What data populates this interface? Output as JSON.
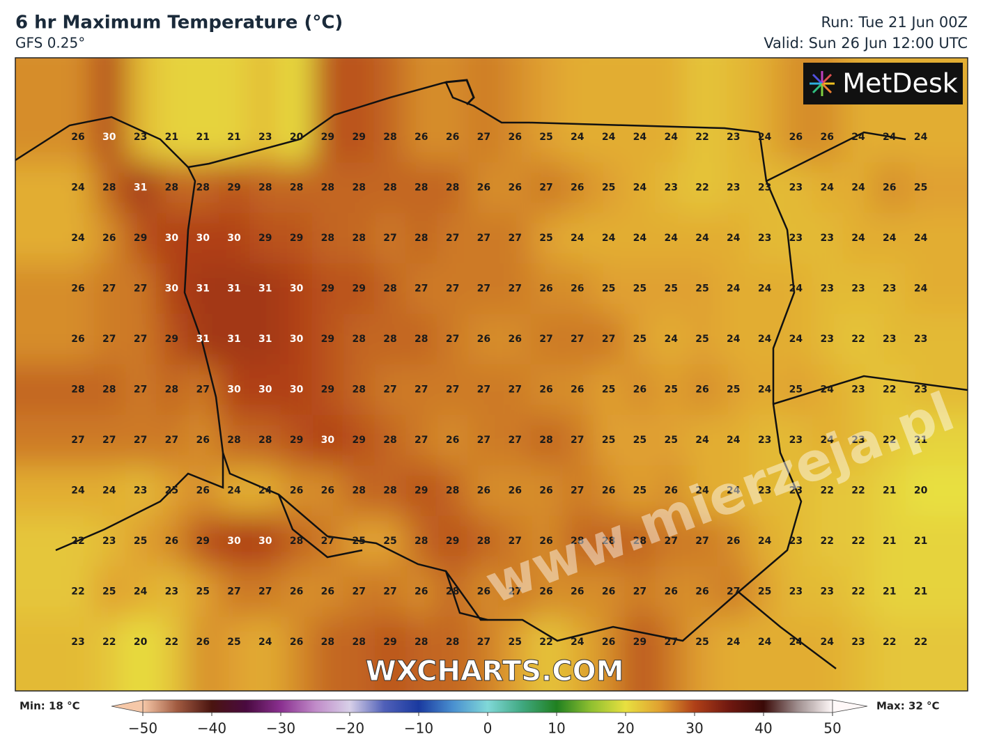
{
  "header": {
    "title": "6 hr Maximum Temperature (°C)",
    "subtitle": "GFS 0.25°",
    "run": "Run: Tue 21 Jun 00Z",
    "valid": "Valid: Sun 26 Jun 12:00 UTC"
  },
  "logo": "MetDesk",
  "watermark": "WXCHARTS.COM",
  "overlay": "www.mierzeja.pl",
  "grid": {
    "rows": [
      [
        26,
        30,
        23,
        21,
        21,
        21,
        23,
        20,
        29,
        29,
        28,
        26,
        26,
        27,
        26,
        25,
        24,
        24,
        24,
        24,
        22,
        23,
        24,
        26,
        26,
        24,
        24,
        24
      ],
      [
        24,
        28,
        31,
        28,
        28,
        29,
        28,
        28,
        28,
        28,
        28,
        28,
        28,
        26,
        26,
        27,
        26,
        25,
        24,
        23,
        22,
        23,
        23,
        23,
        24,
        24,
        26,
        25
      ],
      [
        24,
        26,
        29,
        30,
        30,
        30,
        29,
        29,
        28,
        28,
        27,
        28,
        27,
        27,
        27,
        25,
        24,
        24,
        24,
        24,
        24,
        24,
        23,
        23,
        23,
        24,
        24,
        24
      ],
      [
        26,
        27,
        27,
        30,
        31,
        31,
        31,
        30,
        29,
        29,
        28,
        27,
        27,
        27,
        27,
        26,
        26,
        25,
        25,
        25,
        25,
        24,
        24,
        24,
        23,
        23,
        23,
        24
      ],
      [
        26,
        27,
        27,
        29,
        31,
        31,
        31,
        30,
        29,
        28,
        28,
        28,
        27,
        26,
        26,
        27,
        27,
        27,
        25,
        24,
        25,
        24,
        24,
        24,
        23,
        22,
        23,
        23
      ],
      [
        28,
        28,
        27,
        28,
        27,
        30,
        30,
        30,
        29,
        28,
        27,
        27,
        27,
        27,
        27,
        26,
        26,
        25,
        26,
        25,
        26,
        25,
        24,
        25,
        24,
        23,
        22,
        23
      ],
      [
        27,
        27,
        27,
        27,
        26,
        28,
        28,
        29,
        30,
        29,
        28,
        27,
        26,
        27,
        27,
        28,
        27,
        25,
        25,
        25,
        24,
        24,
        23,
        23,
        24,
        23,
        22,
        21
      ],
      [
        24,
        24,
        23,
        25,
        26,
        24,
        24,
        26,
        26,
        28,
        28,
        29,
        28,
        26,
        26,
        26,
        27,
        26,
        25,
        26,
        24,
        24,
        23,
        23,
        22,
        22,
        21,
        20
      ],
      [
        22,
        23,
        25,
        26,
        29,
        30,
        30,
        28,
        27,
        25,
        25,
        28,
        29,
        28,
        27,
        26,
        28,
        28,
        28,
        27,
        27,
        26,
        24,
        23,
        22,
        22,
        21,
        21
      ],
      [
        22,
        25,
        24,
        23,
        25,
        27,
        27,
        26,
        26,
        27,
        27,
        26,
        28,
        26,
        27,
        26,
        26,
        26,
        27,
        26,
        26,
        27,
        25,
        23,
        23,
        22,
        21,
        21
      ],
      [
        23,
        22,
        20,
        22,
        26,
        25,
        24,
        26,
        28,
        28,
        29,
        28,
        28,
        27,
        25,
        22,
        24,
        26,
        29,
        27,
        25,
        24,
        24,
        24,
        24,
        23,
        22,
        22
      ]
    ]
  },
  "colorbar": {
    "min_label": "Min: 18 °C",
    "max_label": "Max: 32 °C",
    "xlim": [
      -50,
      50
    ],
    "xticks": [
      {
        "value": -50,
        "label": "−50"
      },
      {
        "value": -40,
        "label": "−40"
      },
      {
        "value": -30,
        "label": "−30"
      },
      {
        "value": -20,
        "label": "−20"
      },
      {
        "value": -10,
        "label": "−10"
      },
      0,
      10,
      20,
      30,
      40,
      50
    ],
    "colors": [
      "#f6c8a8",
      "#a05a40",
      "#4a1410",
      "#4a0a40",
      "#8a3090",
      "#c08ac8",
      "#d8d0e8",
      "#5060b8",
      "#1a3aa0",
      "#4a90d0",
      "#80d8d8",
      "#40a880",
      "#208020",
      "#90c030",
      "#e8e040",
      "#e0a030",
      "#b04018",
      "#701810",
      "#3a0a08",
      "#a09090",
      "#fff8f8"
    ]
  }
}
